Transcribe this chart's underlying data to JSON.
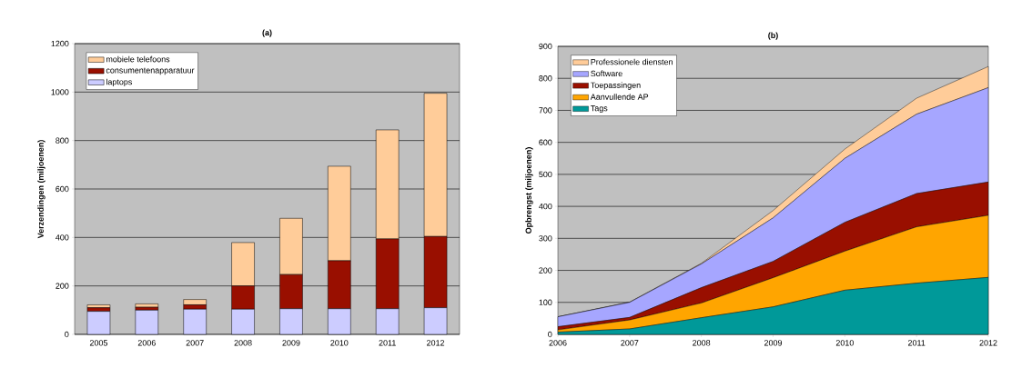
{
  "chart_data": [
    {
      "type": "bar",
      "title": "(a)",
      "ylabel": "Verzendingen (miljoenen)",
      "stacked": true,
      "categories": [
        "2005",
        "2006",
        "2007",
        "2008",
        "2009",
        "2010",
        "2011",
        "2012"
      ],
      "series": [
        {
          "name": "laptops",
          "color": "#ccccff",
          "values": [
            95,
            100,
            104,
            104,
            106,
            106,
            106,
            110
          ]
        },
        {
          "name": "consumentenapparatuur",
          "color": "#990f00",
          "values": [
            15,
            12,
            18,
            96,
            141,
            198,
            288,
            294
          ]
        },
        {
          "name": "mobiele telefoons",
          "color": "#ffcc99",
          "values": [
            12,
            14,
            22,
            179,
            232,
            390,
            450,
            591
          ]
        }
      ],
      "ylim": [
        0,
        1200
      ],
      "yticks": [
        0,
        200,
        400,
        600,
        800,
        1000,
        1200
      ],
      "grid": "y",
      "legend": "top left"
    },
    {
      "type": "area",
      "title": "(b)",
      "ylabel": "Opbrengst (miljoenen)",
      "stacked": true,
      "x": [
        2006,
        2007,
        2008,
        2009,
        2010,
        2011,
        2012
      ],
      "series": [
        {
          "name": "Tags",
          "color": "#009999",
          "values": [
            7,
            17,
            52,
            86,
            138,
            160,
            178
          ]
        },
        {
          "name": "Aanvullende AP",
          "color": "#ffa500",
          "values": [
            7,
            28,
            46,
            91,
            122,
            176,
            194
          ]
        },
        {
          "name": "Toepassingen",
          "color": "#990f00",
          "values": [
            10,
            8,
            48,
            51,
            90,
            104,
            104
          ]
        },
        {
          "name": "Software",
          "color": "#a6a6ff",
          "values": [
            31,
            47,
            74,
            136,
            200,
            248,
            295
          ]
        },
        {
          "name": "Professionele diensten",
          "color": "#ffcc99",
          "values": [
            0,
            1,
            2,
            23,
            29,
            50,
            66
          ]
        }
      ],
      "xlim": [
        2006,
        2012
      ],
      "xticks": [
        2006,
        2007,
        2008,
        2009,
        2010,
        2011,
        2012
      ],
      "ylim": [
        0,
        900
      ],
      "yticks": [
        0,
        100,
        200,
        300,
        400,
        500,
        600,
        700,
        800,
        900
      ],
      "grid": "y",
      "legend": "top left"
    }
  ]
}
